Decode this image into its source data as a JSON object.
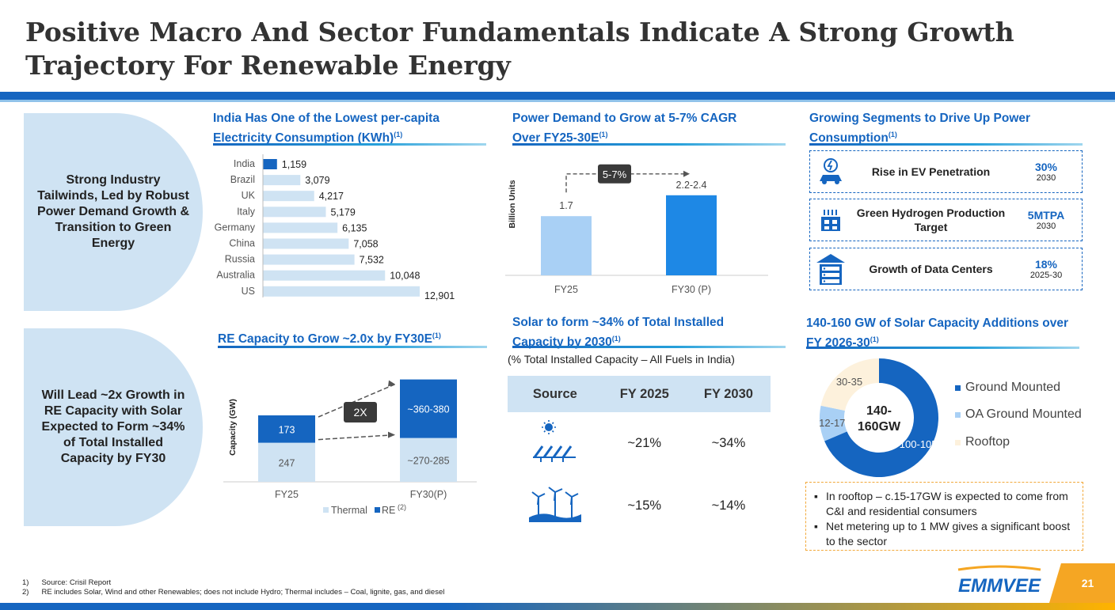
{
  "title": "Positive Macro And Sector Fundamentals Indicate A Strong Growth Trajectory For Renewable Energy",
  "side_panels": [
    "Strong Industry Tailwinds, Led by Robust Power Demand Growth & Transition to Green Energy",
    "Will Lead ~2x Growth in RE Capacity with Solar Expected to Form ~34% of Total Installed Capacity by FY30"
  ],
  "sections": {
    "percapita": "India Has One of the Lowest per-capita Electricity Consumption (KWh)",
    "demand": "Power Demand to Grow at 5-7% CAGR Over FY25-30E",
    "segments": "Growing Segments to Drive Up Power Consumption",
    "re_capacity": "RE Capacity to Grow ~2.0x by FY30E",
    "solar_share": "Solar to form ~34% of Total Installed Capacity by 2030",
    "solar_additions": "140-160 GW of Solar Capacity Additions over FY 2026-30"
  },
  "footnote_marker": "(1)",
  "chart_data": [
    {
      "type": "bar",
      "orientation": "horizontal",
      "categories": [
        "India",
        "Brazil",
        "UK",
        "Italy",
        "Germany",
        "China",
        "Russia",
        "Australia",
        "US"
      ],
      "values": [
        1159,
        3079,
        4217,
        5179,
        6135,
        7058,
        7532,
        10048,
        12901
      ],
      "value_labels": [
        "1,159",
        "3,079",
        "4,217",
        "5,179",
        "6,135",
        "7,058",
        "7,532",
        "10,048",
        "12,901"
      ],
      "highlight": "India",
      "colors": {
        "highlight": "#1565c0",
        "other": "#cfe3f3"
      }
    },
    {
      "type": "bar",
      "categories": [
        "FY25",
        "FY30 (P)"
      ],
      "values": [
        1.7,
        2.3
      ],
      "value_labels": [
        "1.7",
        "2.2-2.4"
      ],
      "ylabel": "Billion Units",
      "annotation": "5-7%",
      "colors": [
        "#a9d0f5",
        "#1e88e5"
      ]
    },
    {
      "type": "bar",
      "stacked": true,
      "categories": [
        "FY25",
        "FY30(P)"
      ],
      "ylabel": "Capacity (GW)",
      "series": [
        {
          "name": "Thermal",
          "values": [
            247,
            277
          ],
          "labels": [
            "247",
            "~270-285"
          ],
          "color": "#cfe3f3"
        },
        {
          "name": "RE",
          "values": [
            173,
            370
          ],
          "labels": [
            "173",
            "~360-380"
          ],
          "color": "#1565c0"
        }
      ],
      "legend_note": "(2)",
      "annotation": "2X"
    },
    {
      "type": "table",
      "subtitle": "(% Total Installed Capacity – All Fuels in India)",
      "columns": [
        "Source",
        "FY 2025",
        "FY 2030"
      ],
      "rows": [
        {
          "source_icon": "solar-panel-icon",
          "fy2025": "~21%",
          "fy2030": "~34%"
        },
        {
          "source_icon": "wind-turbine-icon",
          "fy2025": "~15%",
          "fy2030": "~14%"
        }
      ]
    },
    {
      "type": "pie",
      "donut": true,
      "center_label": "140-160GW",
      "categories": [
        "Ground Mounted",
        "OA Ground Mounted",
        "Rooftop"
      ],
      "values": [
        102.5,
        14.5,
        32.5
      ],
      "labels": [
        "100-105",
        "12-17",
        "30-35"
      ],
      "colors": [
        "#1565c0",
        "#a9d0f5",
        "#fdf1dc"
      ]
    }
  ],
  "segments": [
    {
      "icon": "ev-charging-icon",
      "label": "Rise in EV Penetration",
      "value": "30%",
      "year": "2030"
    },
    {
      "icon": "hydrogen-plant-icon",
      "label": "Green Hydrogen Production Target",
      "value": "5MTPA",
      "year": "2030"
    },
    {
      "icon": "data-center-icon",
      "label": "Growth of Data Centers",
      "value": "18%",
      "year": "2025-30"
    }
  ],
  "notes": [
    "In rooftop – c.15-17GW is expected to come from C&I and residential consumers",
    "Net metering up to 1 MW gives a significant boost to the sector"
  ],
  "footnotes": [
    {
      "num": "1)",
      "text": "Source: Crisil Report"
    },
    {
      "num": "2)",
      "text": "RE includes Solar, Wind and other Renewables; does not include Hydro; Thermal includes – Coal, lignite, gas, and diesel"
    }
  ],
  "logo_text": "EMMVEE",
  "page_number": "21"
}
